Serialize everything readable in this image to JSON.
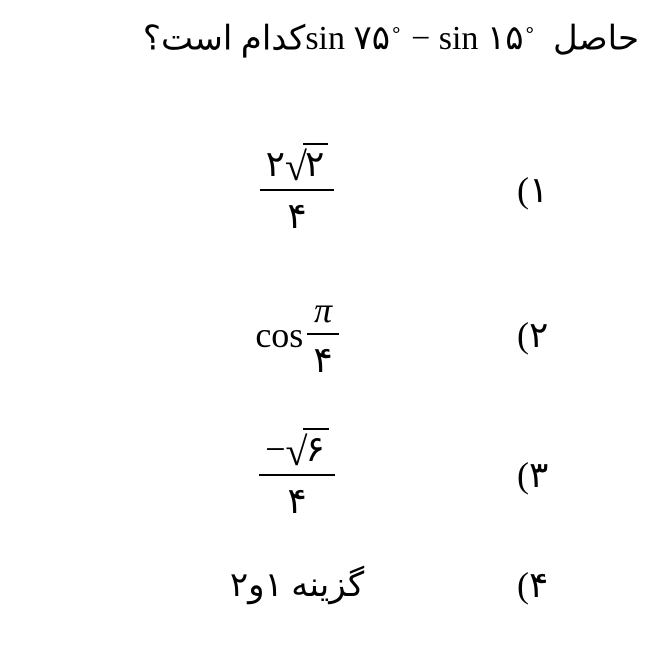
{
  "question": {
    "prefix_fa": "حاصل",
    "expr": {
      "op1": "sin",
      "arg1": "۷۵",
      "deg": "∘",
      "minus": "−",
      "op2": "sin",
      "arg2": "۱۵"
    },
    "suffix_fa": "کدام است؟"
  },
  "options": {
    "m1": "(۱",
    "m2": "(۲",
    "m3": "(۳",
    "m4": "(۴",
    "o1": {
      "coef": "۲",
      "radicand": "۲",
      "denom": "۴"
    },
    "o2": {
      "func": "cos",
      "num": "π",
      "denom": "۴"
    },
    "o3": {
      "neg": "−",
      "radicand": "۶",
      "denom": "۴"
    },
    "o4": {
      "text": "گزینه ۱و۲"
    }
  },
  "style": {
    "text_color": "#000000",
    "bg_color": "#ffffff",
    "question_fontsize": 34,
    "option_fontsize": 36,
    "marker_fontsize": 36
  }
}
